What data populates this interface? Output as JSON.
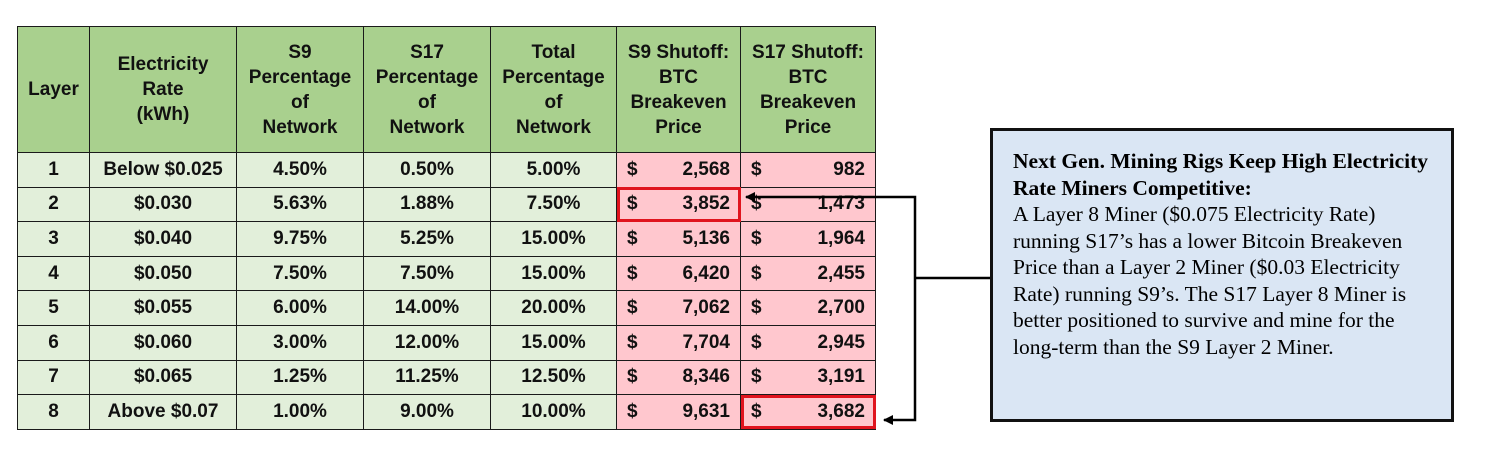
{
  "chart_data": {
    "type": "table",
    "columns": [
      "Layer",
      "Electricity Rate (kWh)",
      "S9 Percentage of Network",
      "S17 Percentage of Network",
      "Total Percentage of Network",
      "S9 Shutoff: BTC Breakeven Price",
      "S17 Shutoff: BTC Breakeven Price"
    ],
    "currency_symbol": "$",
    "rows": [
      {
        "layer": "1",
        "rate": "Below $0.025",
        "s9_pct": "4.50%",
        "s17_pct": "0.50%",
        "total_pct": "5.00%",
        "s9_price": "2,568",
        "s17_price": "982"
      },
      {
        "layer": "2",
        "rate": "$0.030",
        "s9_pct": "5.63%",
        "s17_pct": "1.88%",
        "total_pct": "7.50%",
        "s9_price": "3,852",
        "s17_price": "1,473"
      },
      {
        "layer": "3",
        "rate": "$0.040",
        "s9_pct": "9.75%",
        "s17_pct": "5.25%",
        "total_pct": "15.00%",
        "s9_price": "5,136",
        "s17_price": "1,964"
      },
      {
        "layer": "4",
        "rate": "$0.050",
        "s9_pct": "7.50%",
        "s17_pct": "7.50%",
        "total_pct": "15.00%",
        "s9_price": "6,420",
        "s17_price": "2,455"
      },
      {
        "layer": "5",
        "rate": "$0.055",
        "s9_pct": "6.00%",
        "s17_pct": "14.00%",
        "total_pct": "20.00%",
        "s9_price": "7,062",
        "s17_price": "2,700"
      },
      {
        "layer": "6",
        "rate": "$0.060",
        "s9_pct": "3.00%",
        "s17_pct": "12.00%",
        "total_pct": "15.00%",
        "s9_price": "7,704",
        "s17_price": "2,945"
      },
      {
        "layer": "7",
        "rate": "$0.065",
        "s9_pct": "1.25%",
        "s17_pct": "11.25%",
        "total_pct": "12.50%",
        "s9_price": "8,346",
        "s17_price": "3,191"
      },
      {
        "layer": "8",
        "rate": "Above $0.07",
        "s9_pct": "1.00%",
        "s17_pct": "9.00%",
        "total_pct": "10.00%",
        "s9_price": "9,631",
        "s17_price": "3,682"
      }
    ],
    "highlighted_cells": [
      {
        "layer": "2",
        "column": "S9 Shutoff: BTC Breakeven Price"
      },
      {
        "layer": "8",
        "column": "S17 Shutoff: BTC Breakeven Price"
      }
    ],
    "colors": {
      "header_fill": "#a9d08e",
      "body_fill": "#e2efda",
      "price_fill": "#ffc7ce",
      "highlight": "#e0141e",
      "note_fill": "#dae6f4"
    }
  },
  "annotation": {
    "title": "Next Gen. Mining Rigs Keep High Electricity Rate Miners Competitive:",
    "body": "A Layer 8 Miner ($0.075 Electricity Rate) running S17’s has a lower Bitcoin Breakeven Price than a Layer 2 Miner ($0.03 Electricity Rate) running S9’s. The S17 Layer 8 Miner is better positioned to survive and mine for the long-term than the S9 Layer 2 Miner."
  }
}
